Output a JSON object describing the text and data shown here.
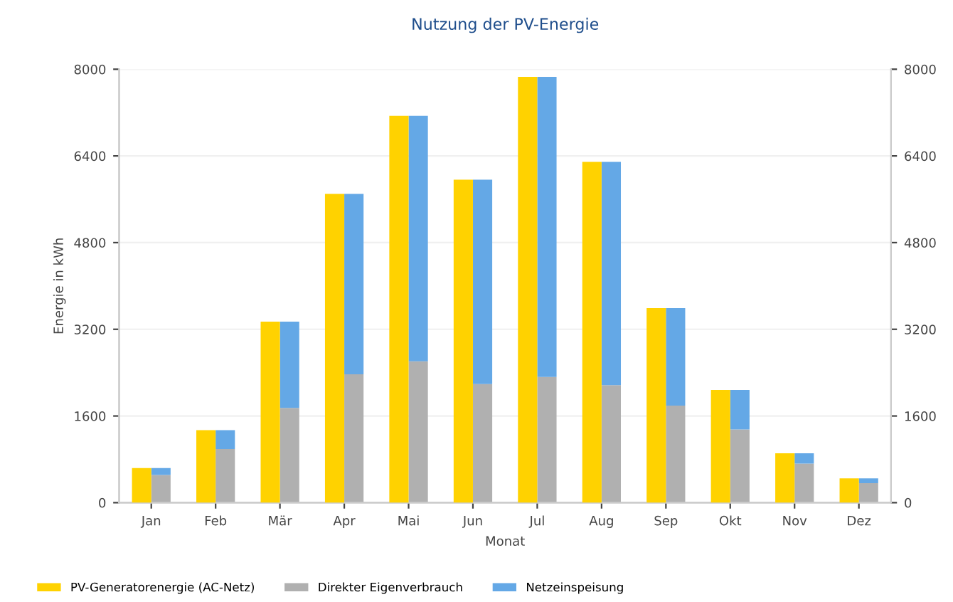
{
  "chart_data": {
    "type": "bar",
    "title": "Nutzung der PV-Energie",
    "xlabel": "Monat",
    "ylabel": "Energie in kWh",
    "categories": [
      "Jan",
      "Feb",
      "Mär",
      "Apr",
      "Mai",
      "Jun",
      "Jul",
      "Aug",
      "Sep",
      "Okt",
      "Nov",
      "Dez"
    ],
    "stacked": true,
    "series": [
      {
        "name": "PV-Generatorenergie (AC-Netz)",
        "color": "#ffd200",
        "axis": "y2",
        "values": [
          640,
          1340,
          3340,
          5700,
          7140,
          5960,
          7860,
          6290,
          3590,
          2080,
          910,
          450
        ]
      },
      {
        "name": "Direkter Eigenverbrauch",
        "color": "#b0b0b0",
        "values": [
          510,
          990,
          1750,
          2370,
          2610,
          2190,
          2320,
          2170,
          1790,
          1350,
          720,
          360
        ]
      },
      {
        "name": "Netzeinspeisung",
        "color": "#64a8e6",
        "values": [
          130,
          350,
          1590,
          3330,
          4530,
          3770,
          5540,
          4120,
          1800,
          730,
          190,
          90
        ]
      }
    ],
    "ylim": [
      0,
      8000
    ],
    "yticks": [
      0,
      1600,
      3200,
      4800,
      6400,
      8000
    ],
    "y2lim": [
      0,
      8000
    ],
    "y2ticks": [
      0,
      1600,
      3200,
      4800,
      6400,
      8000
    ],
    "grid": "y",
    "legend": "bottom left"
  }
}
